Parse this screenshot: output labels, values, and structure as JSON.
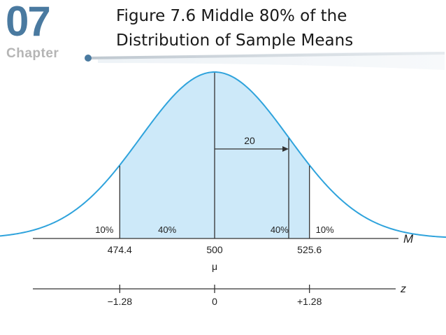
{
  "header": {
    "chapter_number": "07",
    "chapter_label": "Chapter",
    "title_line1": "Figure 7.6   Middle 80% of the",
    "title_line2": "Distribution of Sample Means"
  },
  "chart_data": {
    "type": "area",
    "distribution": "normal",
    "mean": 500,
    "standard_error": 20,
    "sd_annotation": "20",
    "axes": {
      "m": {
        "label": "M",
        "ticks": [
          "474.4",
          "500",
          "525.6"
        ],
        "values": [
          474.4,
          500,
          525.6
        ]
      },
      "z": {
        "label": "z",
        "ticks": [
          "−1.28",
          "0",
          "+1.28"
        ],
        "values": [
          -1.28,
          0,
          1.28
        ]
      }
    },
    "mu_label": "μ",
    "regions": [
      {
        "label": "10%",
        "from_z": -3.6,
        "to_z": -1.28,
        "shaded": false
      },
      {
        "label": "40%",
        "from_z": -1.28,
        "to_z": 0,
        "shaded": true
      },
      {
        "label": "40%",
        "from_z": 0,
        "to_z": 1.28,
        "shaded": true
      },
      {
        "label": "10%",
        "from_z": 1.28,
        "to_z": 3.6,
        "shaded": false
      }
    ],
    "colors": {
      "curve": "#2fa3dc",
      "fill": "#cde9f9",
      "axis": "#333333",
      "text": "#222222"
    }
  }
}
